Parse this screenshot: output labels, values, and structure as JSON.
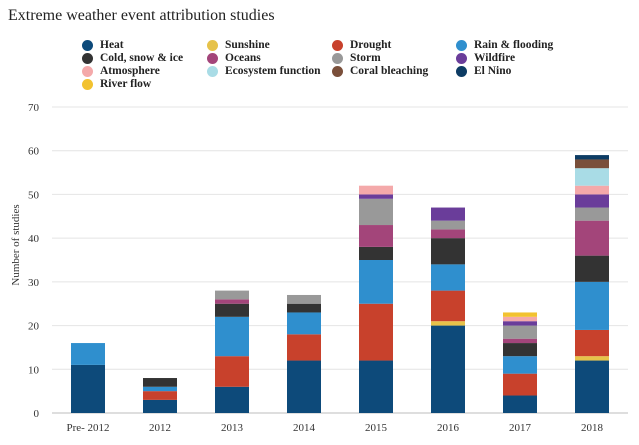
{
  "chart_data": {
    "type": "bar",
    "stacked": true,
    "title": "Extreme weather event attribution studies",
    "xlabel": "",
    "ylabel": "Number of studies",
    "ylim": [
      0,
      70
    ],
    "yticks": [
      0,
      10,
      20,
      30,
      40,
      50,
      60,
      70
    ],
    "grid": true,
    "legend_position": "top",
    "categories": [
      "Pre- 2012",
      "2012",
      "2013",
      "2014",
      "2015",
      "2016",
      "2017",
      "2018"
    ],
    "series": [
      {
        "name": "Heat",
        "color": "#0d4a7a",
        "values": [
          11,
          3,
          6,
          12,
          12,
          20,
          4,
          12
        ]
      },
      {
        "name": "Sunshine",
        "color": "#e6c24a",
        "values": [
          0,
          0,
          0,
          0,
          0,
          1,
          0,
          1
        ]
      },
      {
        "name": "Drought",
        "color": "#c8412c",
        "values": [
          0,
          2,
          7,
          6,
          13,
          7,
          5,
          6
        ]
      },
      {
        "name": "Rain & flooding",
        "color": "#2f8fce",
        "values": [
          5,
          1,
          9,
          5,
          10,
          6,
          4,
          11
        ]
      },
      {
        "name": "Cold, snow & ice",
        "color": "#333333",
        "values": [
          0,
          2,
          3,
          2,
          3,
          6,
          3,
          6
        ]
      },
      {
        "name": "Oceans",
        "color": "#a3457a",
        "values": [
          0,
          0,
          1,
          0,
          5,
          2,
          1,
          8
        ]
      },
      {
        "name": "Storm",
        "color": "#999999",
        "values": [
          0,
          0,
          2,
          2,
          6,
          2,
          3,
          3
        ]
      },
      {
        "name": "Wildfire",
        "color": "#6a3d9a",
        "values": [
          0,
          0,
          0,
          0,
          1,
          3,
          1,
          3
        ]
      },
      {
        "name": "Atmosphere",
        "color": "#f4a9aa",
        "values": [
          0,
          0,
          0,
          0,
          2,
          0,
          1,
          2
        ]
      },
      {
        "name": "Ecosystem function",
        "color": "#a9dce6",
        "values": [
          0,
          0,
          0,
          0,
          0,
          0,
          0,
          4
        ]
      },
      {
        "name": "Coral bleaching",
        "color": "#7a4f3a",
        "values": [
          0,
          0,
          0,
          0,
          0,
          0,
          0,
          2
        ]
      },
      {
        "name": "El Nino",
        "color": "#0d3c64",
        "values": [
          0,
          0,
          0,
          0,
          0,
          0,
          0,
          1
        ]
      },
      {
        "name": "River flow",
        "color": "#f2c230",
        "values": [
          0,
          0,
          0,
          0,
          0,
          0,
          1,
          0
        ]
      }
    ]
  }
}
